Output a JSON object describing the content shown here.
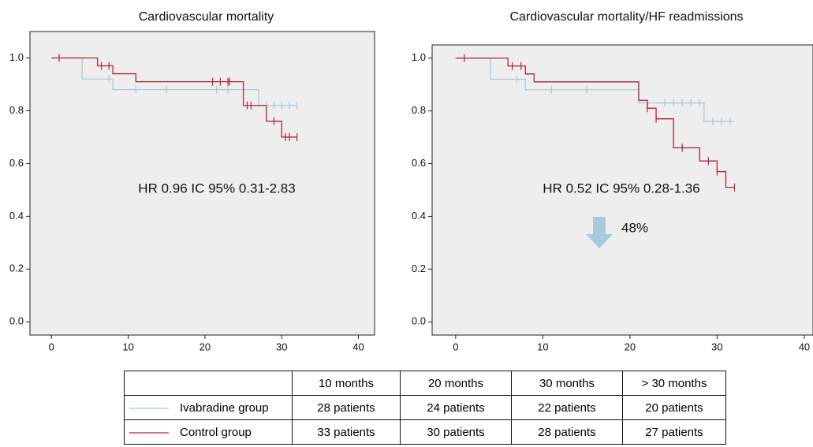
{
  "chart_data": [
    {
      "type": "step",
      "title": "Cardiovascular mortality",
      "annotation": "HR 0.96 IC 95% 0.31-2.83",
      "xlim": [
        -2.8,
        42.1
      ],
      "ylim": [
        -0.05,
        1.1
      ],
      "xticks": [
        0,
        10,
        20,
        30,
        40
      ],
      "yticks": [
        {
          "value": 0,
          "label": "0.0"
        },
        0.2,
        0.4,
        0.6,
        0.8,
        {
          "value": 1,
          "label": "1.0"
        }
      ],
      "series": [
        {
          "color": "#a9c9de",
          "x": [
            0,
            4,
            8,
            27,
            32
          ],
          "values": [
            1,
            0.92,
            0.88,
            0.82,
            0.82
          ],
          "censored_x": [
            7.5,
            11,
            15,
            21.5,
            23,
            28,
            29,
            30,
            31,
            32
          ],
          "censored_values": [
            0.92,
            0.88,
            0.88,
            0.88,
            0.88,
            0.82,
            0.82,
            0.82,
            0.82,
            0.82
          ]
        },
        {
          "color": "#b22234",
          "x": [
            0,
            6,
            8,
            11,
            25,
            28,
            30,
            32
          ],
          "values": [
            1,
            0.97,
            0.94,
            0.91,
            0.82,
            0.76,
            0.7,
            0.7
          ],
          "censored_x": [
            1,
            6.5,
            7.5,
            21,
            22,
            23,
            23.2,
            25.5,
            26,
            29,
            30.5,
            31,
            32
          ],
          "censored_values": [
            1,
            0.97,
            0.97,
            0.91,
            0.91,
            0.91,
            0.91,
            0.82,
            0.82,
            0.76,
            0.7,
            0.7,
            0.7
          ]
        }
      ]
    },
    {
      "type": "step",
      "title": "Cardiovascular mortality/HF readmissions",
      "annotation": "HR 0.52 IC 95% 0.28-1.36",
      "note": "48%",
      "xlim": [
        -2.7,
        41
      ],
      "ylim": [
        -0.05,
        1.05
      ],
      "xticks": [
        0,
        10,
        20,
        30,
        40
      ],
      "yticks": [
        {
          "value": 0,
          "label": "0.0"
        },
        0.2,
        0.4,
        0.6,
        0.8,
        {
          "value": 1,
          "label": "1.0"
        }
      ],
      "series": [
        {
          "color": "#a9c9de",
          "x": [
            0,
            4,
            8,
            21,
            28.5,
            32
          ],
          "values": [
            1,
            0.92,
            0.88,
            0.83,
            0.76,
            0.76
          ],
          "censored_x": [
            7,
            11,
            15,
            24,
            25,
            26,
            27,
            28,
            29.5,
            30.5,
            31.5
          ],
          "censored_values": [
            0.92,
            0.88,
            0.88,
            0.83,
            0.83,
            0.83,
            0.83,
            0.83,
            0.76,
            0.76,
            0.76
          ]
        },
        {
          "color": "#b22234",
          "x": [
            0,
            6,
            8,
            9,
            21,
            22,
            23,
            25,
            28,
            30,
            31,
            32
          ],
          "values": [
            1,
            0.97,
            0.94,
            0.91,
            0.84,
            0.81,
            0.77,
            0.66,
            0.61,
            0.57,
            0.51,
            0.51
          ],
          "censored_x": [
            1,
            6.5,
            7.5,
            22,
            23,
            26,
            29,
            30,
            32
          ],
          "censored_values": [
            1,
            0.97,
            0.97,
            0.81,
            0.77,
            0.66,
            0.61,
            0.57,
            0.51
          ]
        }
      ]
    }
  ],
  "table": {
    "header": [
      "10 months",
      "20 months",
      "30 months",
      "> 30 months"
    ],
    "rows": [
      {
        "label": "Ivabradine group",
        "cells": [
          "28 patients",
          "24 patients",
          "22 patients",
          "20 patients"
        ]
      },
      {
        "label": "Control group",
        "cells": [
          "33 patients",
          "30 patients",
          "28 patients",
          "27 patients"
        ]
      }
    ]
  }
}
